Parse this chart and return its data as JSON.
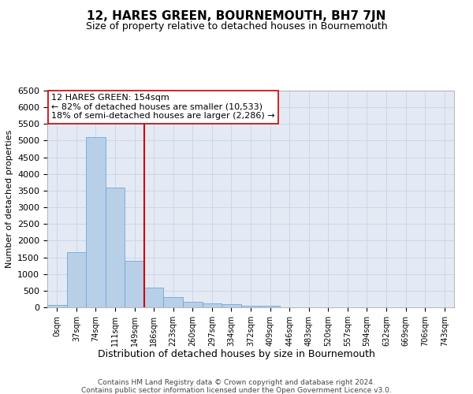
{
  "title": "12, HARES GREEN, BOURNEMOUTH, BH7 7JN",
  "subtitle": "Size of property relative to detached houses in Bournemouth",
  "xlabel": "Distribution of detached houses by size in Bournemouth",
  "ylabel": "Number of detached properties",
  "footer_line1": "Contains HM Land Registry data © Crown copyright and database right 2024.",
  "footer_line2": "Contains public sector information licensed under the Open Government Licence v3.0.",
  "bar_labels": [
    "0sqm",
    "37sqm",
    "74sqm",
    "111sqm",
    "149sqm",
    "186sqm",
    "223sqm",
    "260sqm",
    "297sqm",
    "334sqm",
    "372sqm",
    "409sqm",
    "446sqm",
    "483sqm",
    "520sqm",
    "557sqm",
    "594sqm",
    "632sqm",
    "669sqm",
    "706sqm",
    "743sqm"
  ],
  "bar_values": [
    75,
    1650,
    5100,
    3600,
    1400,
    580,
    310,
    155,
    130,
    90,
    50,
    50,
    0,
    0,
    0,
    0,
    0,
    0,
    0,
    0,
    0
  ],
  "bar_color": "#b8cfe8",
  "bar_edge_color": "#6fa8d8",
  "vline_color": "#cc0000",
  "vline_pos": 4.5,
  "ylim": [
    0,
    6500
  ],
  "yticks": [
    0,
    500,
    1000,
    1500,
    2000,
    2500,
    3000,
    3500,
    4000,
    4500,
    5000,
    5500,
    6000,
    6500
  ],
  "annotation_title": "12 HARES GREEN: 154sqm",
  "annotation_line1": "← 82% of detached houses are smaller (10,533)",
  "annotation_line2": "18% of semi-detached houses are larger (2,286) →",
  "annotation_box_color": "#ffffff",
  "annotation_box_edge": "#cc0000",
  "grid_color": "#cdd6e8",
  "bg_color": "#e4eaf4",
  "title_fontsize": 11,
  "subtitle_fontsize": 9,
  "ylabel_fontsize": 8,
  "xlabel_fontsize": 9,
  "tick_fontsize": 8,
  "xtick_fontsize": 7,
  "ann_fontsize": 8,
  "footer_fontsize": 6.5
}
